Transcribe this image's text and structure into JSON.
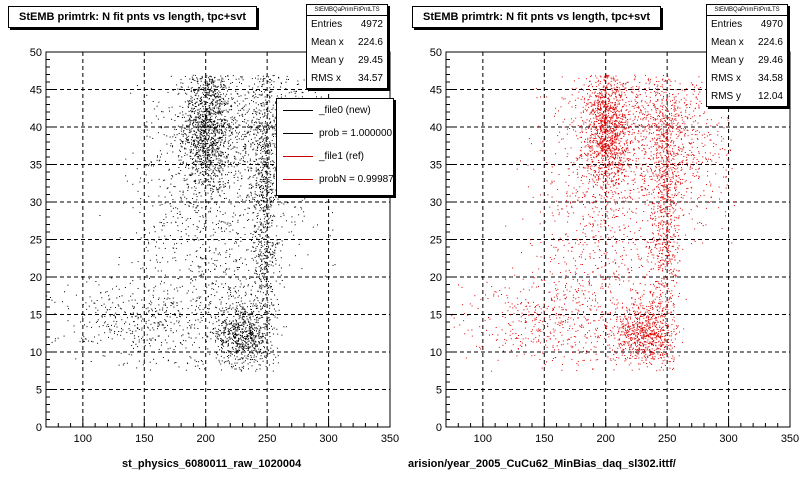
{
  "chart_data": [
    {
      "type": "scatter",
      "title": "StEMB primtrk: N fit pnts vs length, tpc+svt",
      "xlabel": "",
      "ylabel": "",
      "xlim": [
        70,
        350
      ],
      "ylim": [
        0,
        50
      ],
      "x_ticks": [
        100,
        150,
        200,
        250,
        300,
        350
      ],
      "y_ticks": [
        0,
        5,
        10,
        15,
        20,
        25,
        30,
        35,
        40,
        45,
        50
      ],
      "grid": true,
      "point_color": "#000000",
      "stats": {
        "name": "StEMBQaPrimFitPntLTS",
        "rows": [
          {
            "label": "Entries",
            "value": "4972"
          },
          {
            "label": "Mean x",
            "value": "224.6"
          },
          {
            "label": "Mean y",
            "value": "29.45"
          },
          {
            "label": "RMS x",
            "value": "34.57"
          }
        ]
      },
      "legend": {
        "position": "top-right",
        "entries": [
          {
            "label": "_file0 (new)",
            "color": "#000000"
          },
          {
            "label": "prob = 1.000000",
            "color": "#000000"
          },
          {
            "label": "_file1 (ref)",
            "color": "#cc0000"
          },
          {
            "label": "probN = 0.999875",
            "color": "#cc0000"
          }
        ]
      },
      "clusters": [
        {
          "x": 200,
          "y": 40,
          "sx": 9,
          "sy": 4.5,
          "n": 1100
        },
        {
          "x": 230,
          "y": 12.5,
          "sx": 11,
          "sy": 2.2,
          "n": 700
        },
        {
          "x": 248,
          "y": 28,
          "sx": 6,
          "sy": 11,
          "n": 800
        },
        {
          "x": 218,
          "y": 40,
          "sx": 25,
          "sy": 4.5,
          "n": 650
        },
        {
          "x": 150,
          "y": 14,
          "sx": 35,
          "sy": 3,
          "n": 450
        },
        {
          "x": 175,
          "y": 26,
          "sx": 20,
          "sy": 9,
          "n": 350
        },
        {
          "x": 265,
          "y": 38,
          "sx": 20,
          "sy": 6,
          "n": 550
        },
        {
          "x": 215,
          "y": 24,
          "sx": 18,
          "sy": 9,
          "n": 372
        }
      ],
      "seed": 12345,
      "file_label": "st_physics_6080011_raw_1020004"
    },
    {
      "type": "scatter",
      "title": "StEMB primtrk: N fit pnts vs length, tpc+svt",
      "xlabel": "",
      "ylabel": "",
      "xlim": [
        70,
        350
      ],
      "ylim": [
        0,
        50
      ],
      "x_ticks": [
        100,
        150,
        200,
        250,
        300,
        350
      ],
      "y_ticks": [
        0,
        5,
        10,
        15,
        20,
        25,
        30,
        35,
        40,
        45,
        50
      ],
      "grid": true,
      "point_color": "#dd0000",
      "stats": {
        "name": "StEMBQaPrimFitPntLTS",
        "rows": [
          {
            "label": "Entries",
            "value": "4970"
          },
          {
            "label": "Mean x",
            "value": "224.6"
          },
          {
            "label": "Mean y",
            "value": "29.46"
          },
          {
            "label": "RMS x",
            "value": "34.58"
          },
          {
            "label": "RMS y",
            "value": "12.04"
          }
        ]
      },
      "clusters": [
        {
          "x": 200,
          "y": 40,
          "sx": 9,
          "sy": 4.5,
          "n": 1100
        },
        {
          "x": 230,
          "y": 12.5,
          "sx": 11,
          "sy": 2.2,
          "n": 700
        },
        {
          "x": 248,
          "y": 28,
          "sx": 6,
          "sy": 11,
          "n": 800
        },
        {
          "x": 218,
          "y": 40,
          "sx": 25,
          "sy": 4.5,
          "n": 650
        },
        {
          "x": 150,
          "y": 14,
          "sx": 35,
          "sy": 3,
          "n": 450
        },
        {
          "x": 175,
          "y": 26,
          "sx": 20,
          "sy": 9,
          "n": 350
        },
        {
          "x": 265,
          "y": 38,
          "sx": 20,
          "sy": 6,
          "n": 550
        },
        {
          "x": 215,
          "y": 24,
          "sx": 18,
          "sy": 9,
          "n": 370
        }
      ],
      "seed": 67890,
      "file_label": "arision/year_2005_CuCu62_MinBias_daq_sl302.ittf/"
    }
  ]
}
